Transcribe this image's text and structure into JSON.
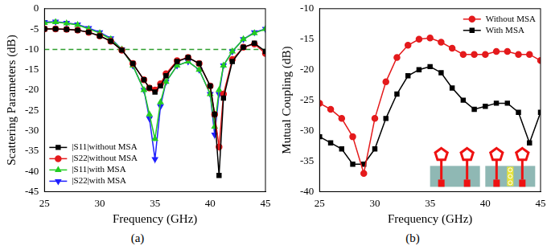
{
  "chart_data": [
    {
      "type": "line",
      "caption": "(a)",
      "x_label": "Frequency (GHz)",
      "y_label": "Scattering Parameters (dB)",
      "x": [
        25,
        26,
        27,
        28,
        29,
        30,
        31,
        32,
        33,
        34,
        34.5,
        35,
        35.5,
        36,
        37,
        38,
        39,
        40,
        40.4,
        40.8,
        41.2,
        42,
        43,
        44,
        45
      ],
      "series": [
        {
          "name": "|S11|without MSA",
          "color": "#000000",
          "marker": "square",
          "line_style": "solid",
          "values": [
            -5,
            -5,
            -5.1,
            -5.3,
            -5.8,
            -6.7,
            -8,
            -10.2,
            -13.5,
            -17.5,
            -19.5,
            -20.5,
            -19,
            -16.5,
            -13,
            -12,
            -13.5,
            -19,
            -26,
            -41,
            -22,
            -13,
            -9.5,
            -8.5,
            -10.5
          ]
        },
        {
          "name": "|S22|without MSA",
          "color": "#e41a1c",
          "marker": "circle",
          "line_style": "solid",
          "values": [
            -5,
            -5,
            -5.1,
            -5.3,
            -5.8,
            -6.7,
            -8,
            -10.2,
            -13.5,
            -17.5,
            -19.5,
            -20,
            -18.5,
            -16,
            -12.8,
            -12,
            -13.5,
            -19,
            -26,
            -34,
            -21,
            -12.5,
            -9.5,
            -8.7,
            -11
          ]
        },
        {
          "name": "|S11|with MSA",
          "color": "#22cc22",
          "marker": "triangle",
          "line_style": "solid",
          "values": [
            -3.5,
            -3.3,
            -3.6,
            -4,
            -5,
            -6,
            -7.5,
            -10,
            -14,
            -20,
            -26,
            -32,
            -23,
            -18,
            -14,
            -13,
            -15,
            -21,
            -29,
            -20,
            -14,
            -10.5,
            -7.5,
            -6,
            -5
          ]
        },
        {
          "name": "|S22|with MSA",
          "color": "#1f1fff",
          "marker": "triangle_down",
          "line_style": "solid",
          "values": [
            -3.3,
            -3.2,
            -3.5,
            -3.9,
            -4.8,
            -5.8,
            -7.3,
            -10,
            -14,
            -20,
            -27,
            -37,
            -24,
            -18,
            -14,
            -13,
            -15,
            -21,
            -31,
            -21,
            -14,
            -10.5,
            -7.5,
            -5.8,
            -5
          ]
        }
      ],
      "hlines": [
        {
          "value": -10,
          "color": "#2e9e2e",
          "line_style": "dashed"
        }
      ],
      "xlim": [
        25,
        45
      ],
      "xticks": [
        25,
        30,
        35,
        40,
        45
      ],
      "ylim": [
        -45,
        0
      ],
      "yticks": [
        -45,
        -40,
        -35,
        -30,
        -25,
        -20,
        -15,
        -10,
        -5,
        0
      ],
      "legend": "lower left",
      "grid": false
    },
    {
      "type": "line",
      "caption": "(b)",
      "x_label": "Frequency (GHz)",
      "y_label": "Mutual Coupling (dB)",
      "x": [
        25,
        26,
        27,
        28,
        29,
        30,
        31,
        32,
        33,
        34,
        35,
        36,
        37,
        38,
        39,
        40,
        41,
        42,
        43,
        44,
        45
      ],
      "series": [
        {
          "name": "Without MSA",
          "color": "#e41a1c",
          "marker": "circle",
          "line_style": "solid",
          "values": [
            -25.5,
            -26.5,
            -28,
            -31,
            -37,
            -28,
            -22,
            -18,
            -16,
            -15,
            -14.8,
            -15.5,
            -16.5,
            -17.5,
            -17.5,
            -17.5,
            -17,
            -17,
            -17.5,
            -17.5,
            -18.5
          ]
        },
        {
          "name": "With MSA",
          "color": "#000000",
          "marker": "square",
          "line_style": "solid",
          "values": [
            -31,
            -32,
            -33,
            -35.5,
            -35.5,
            -33,
            -28,
            -24,
            -21,
            -20,
            -19.5,
            -20.5,
            -23,
            -25,
            -26.5,
            -26,
            -25.5,
            -25.5,
            -27,
            -32,
            -27
          ]
        }
      ],
      "xlim": [
        25,
        45
      ],
      "xticks": [
        25,
        30,
        35,
        40,
        45
      ],
      "ylim": [
        -40,
        -10
      ],
      "yticks": [
        -40,
        -35,
        -30,
        -25,
        -20,
        -15,
        -10
      ],
      "legend": "upper right",
      "grid": false
    }
  ]
}
